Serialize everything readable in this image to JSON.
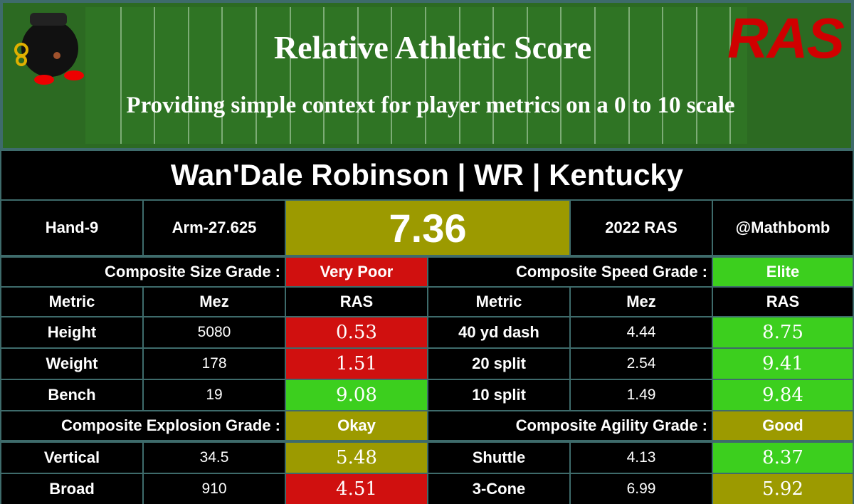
{
  "header": {
    "title": "Relative Athletic Score",
    "subtitle": "Providing simple context for player metrics on a 0 to 10 scale",
    "logo": "RAS"
  },
  "player": "Wan'Dale Robinson | WR | Kentucky",
  "info": {
    "hand": "Hand-9",
    "arm": "Arm-27.625",
    "score": "7.36",
    "score_color": "#9c9a00",
    "year": "2022 RAS",
    "handle": "@Mathbomb"
  },
  "columns": [
    "Metric",
    "Mez",
    "RAS"
  ],
  "groups": [
    {
      "label": "Composite Size Grade :",
      "grade": "Very Poor",
      "color": "#d0100f",
      "metrics": [
        {
          "metric": "Height",
          "mez": "5080",
          "ras": "0.53",
          "color": "#d0100f"
        },
        {
          "metric": "Weight",
          "mez": "178",
          "ras": "1.51",
          "color": "#d0100f"
        },
        {
          "metric": "Bench",
          "mez": "19",
          "ras": "9.08",
          "color": "#3ccf1e"
        }
      ]
    },
    {
      "label": "Composite Speed Grade :",
      "grade": "Elite",
      "color": "#3ccf1e",
      "metrics": [
        {
          "metric": "40 yd dash",
          "mez": "4.44",
          "ras": "8.75",
          "color": "#3ccf1e"
        },
        {
          "metric": "20 split",
          "mez": "2.54",
          "ras": "9.41",
          "color": "#3ccf1e"
        },
        {
          "metric": "10 split",
          "mez": "1.49",
          "ras": "9.84",
          "color": "#3ccf1e"
        }
      ]
    },
    {
      "label": "Composite Explosion Grade :",
      "grade": "Okay",
      "color": "#9c9a00",
      "metrics": [
        {
          "metric": "Vertical",
          "mez": "34.5",
          "ras": "5.48",
          "color": "#9c9a00"
        },
        {
          "metric": "Broad",
          "mez": "910",
          "ras": "4.51",
          "color": "#d0100f"
        }
      ]
    },
    {
      "label": "Composite Agility Grade :",
      "grade": "Good",
      "color": "#9c9a00",
      "metrics": [
        {
          "metric": "Shuttle",
          "mez": "4.13",
          "ras": "8.37",
          "color": "#3ccf1e"
        },
        {
          "metric": "3-Cone",
          "mez": "6.99",
          "ras": "5.92",
          "color": "#9c9a00"
        }
      ]
    }
  ]
}
